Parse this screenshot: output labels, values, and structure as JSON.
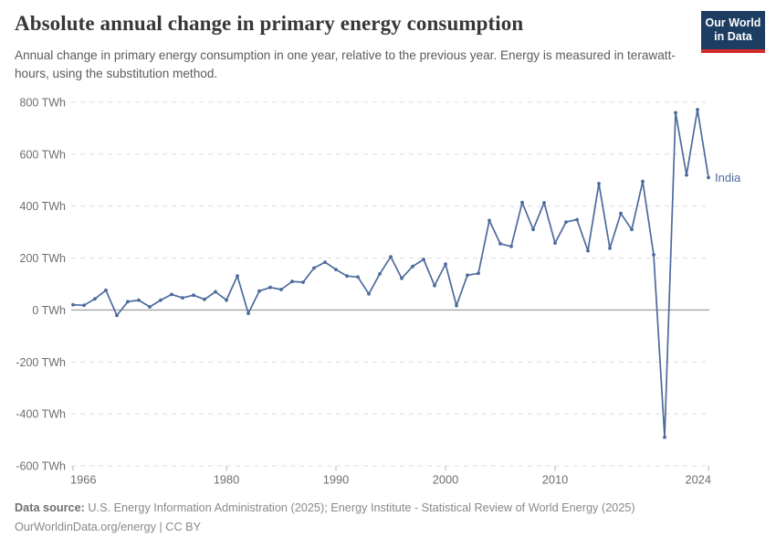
{
  "header": {
    "title": "Absolute annual change in primary energy consumption",
    "subtitle": "Annual change in primary energy consumption in one year, relative to the previous year. Energy is measured in terawatt-hours, using the substitution method.",
    "logo": {
      "line1": "Our World",
      "line2": "in Data"
    }
  },
  "footer": {
    "datasource_label": "Data source:",
    "datasource_text": " U.S. Energy Information Administration (2025); Energy Institute - Statistical Review of World Energy (2025)",
    "link_text": "OurWorldinData.org/energy",
    "separator": " | ",
    "license": "CC BY"
  },
  "chart_data": {
    "type": "line",
    "title": "Absolute annual change in primary energy consumption",
    "unit": "TWh",
    "ylim": [
      -600,
      800
    ],
    "grid": "horizontal-dashed",
    "zero_line": true,
    "legend_position": "end-of-line-label",
    "x": [
      1966,
      1967,
      1968,
      1969,
      1970,
      1971,
      1972,
      1973,
      1974,
      1975,
      1976,
      1977,
      1978,
      1979,
      1980,
      1981,
      1982,
      1983,
      1984,
      1985,
      1986,
      1987,
      1988,
      1989,
      1990,
      1991,
      1992,
      1993,
      1994,
      1995,
      1996,
      1997,
      1998,
      1999,
      2000,
      2001,
      2002,
      2003,
      2004,
      2005,
      2006,
      2007,
      2008,
      2009,
      2010,
      2011,
      2012,
      2013,
      2014,
      2015,
      2016,
      2017,
      2018,
      2019,
      2020,
      2021,
      2022,
      2023,
      2024
    ],
    "series": [
      {
        "name": "India",
        "color": "#4C6A9C",
        "values": [
          20,
          18,
          43,
          76,
          -21,
          32,
          38,
          12,
          38,
          60,
          47,
          57,
          41,
          70,
          38,
          131,
          -13,
          73,
          87,
          79,
          110,
          107,
          162,
          184,
          156,
          131,
          127,
          62,
          139,
          205,
          122,
          168,
          195,
          94,
          177,
          17,
          134,
          141,
          345,
          255,
          245,
          414,
          310,
          413,
          258,
          339,
          348,
          228,
          487,
          238,
          372,
          310,
          495,
          213,
          -490,
          760,
          520,
          772,
          510
        ]
      }
    ],
    "y_ticks": [
      {
        "value": 800,
        "label": "800 TWh"
      },
      {
        "value": 600,
        "label": "600 TWh"
      },
      {
        "value": 400,
        "label": "400 TWh"
      },
      {
        "value": 200,
        "label": "200 TWh"
      },
      {
        "value": 0,
        "label": "0 TWh"
      },
      {
        "value": -200,
        "label": "-200 TWh"
      },
      {
        "value": -400,
        "label": "-400 TWh"
      },
      {
        "value": -600,
        "label": "-600 TWh"
      }
    ],
    "x_ticks": [
      {
        "value": 1966,
        "label": "1966"
      },
      {
        "value": 1980,
        "label": "1980"
      },
      {
        "value": 1990,
        "label": "1990"
      },
      {
        "value": 2000,
        "label": "2000"
      },
      {
        "value": 2010,
        "label": "2010"
      },
      {
        "value": 2024,
        "label": "2024"
      }
    ]
  }
}
